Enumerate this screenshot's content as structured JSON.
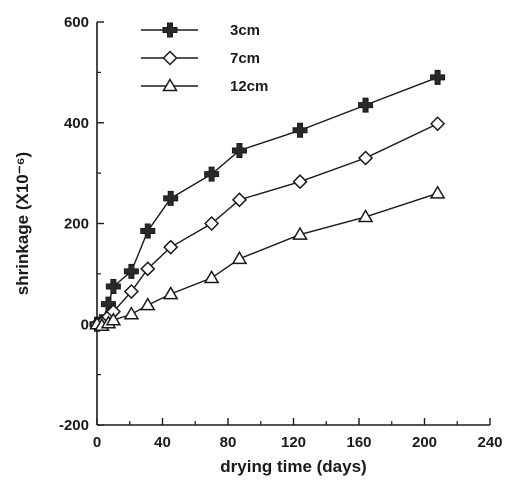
{
  "chart_data": {
    "type": "line",
    "xlabel": "drying time (days)",
    "ylabel": "shrinkage (X10⁻⁶)",
    "xlim": [
      0,
      240
    ],
    "ylim": [
      -200,
      600
    ],
    "xticks": [
      0,
      40,
      80,
      120,
      160,
      200,
      240
    ],
    "yticks": [
      -200,
      0,
      200,
      400,
      600
    ],
    "grid": false,
    "legend_position": "top-left",
    "series": [
      {
        "name": "3cm",
        "marker": "cross",
        "x": [
          0,
          3,
          7,
          10,
          21,
          31,
          45,
          70,
          87,
          124,
          164,
          208
        ],
        "y": [
          0,
          5,
          40,
          75,
          105,
          185,
          250,
          298,
          345,
          385,
          435,
          490
        ]
      },
      {
        "name": "7cm",
        "marker": "diamond",
        "x": [
          0,
          3,
          7,
          10,
          21,
          31,
          45,
          70,
          87,
          124,
          164,
          208
        ],
        "y": [
          0,
          2,
          15,
          25,
          65,
          110,
          153,
          200,
          247,
          283,
          330,
          398
        ]
      },
      {
        "name": "12cm",
        "marker": "triangle",
        "x": [
          0,
          3,
          7,
          10,
          21,
          31,
          45,
          70,
          87,
          124,
          164,
          208
        ],
        "y": [
          0,
          -3,
          2,
          8,
          20,
          38,
          60,
          92,
          130,
          178,
          213,
          260
        ]
      }
    ]
  }
}
